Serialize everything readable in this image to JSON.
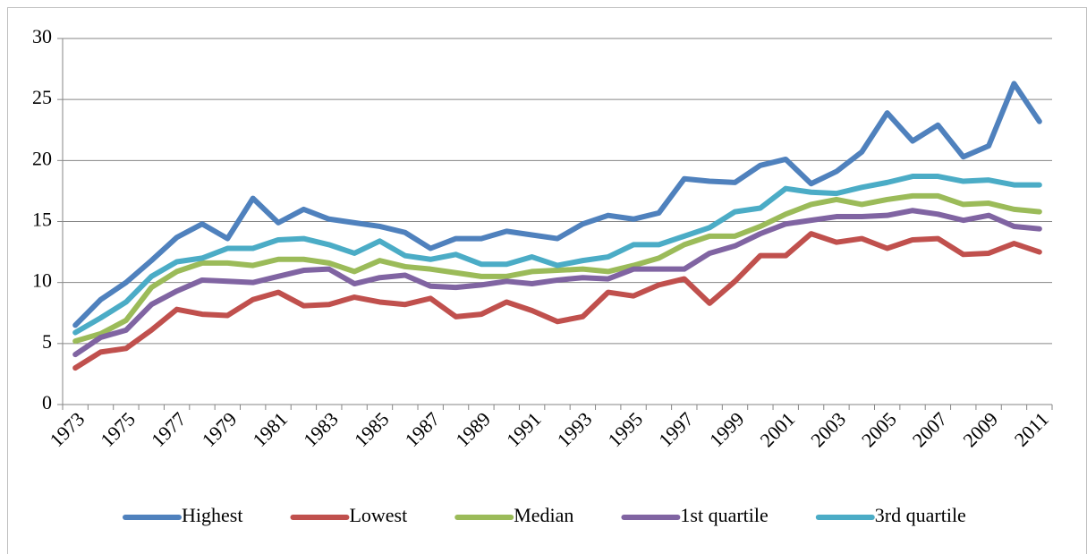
{
  "chart_data": {
    "type": "line",
    "categories": [
      "1973",
      null,
      "1975",
      null,
      "1977",
      null,
      "1979",
      null,
      "1981",
      null,
      "1983",
      null,
      "1985",
      null,
      "1987",
      null,
      "1989",
      null,
      "1991",
      null,
      "1993",
      null,
      "1995",
      null,
      "1997",
      null,
      "1999",
      null,
      "2001",
      null,
      "2003",
      null,
      "2005",
      null,
      "2007",
      null,
      "2009",
      null,
      "2011"
    ],
    "series": [
      {
        "name": "Highest",
        "color": "#4f81bd",
        "values": [
          6.5,
          8.6,
          10.0,
          11.8,
          13.7,
          14.8,
          13.6,
          16.9,
          14.9,
          16.0,
          15.2,
          14.9,
          14.6,
          14.1,
          12.8,
          13.6,
          13.6,
          14.2,
          13.9,
          13.6,
          14.8,
          15.5,
          15.2,
          15.7,
          18.5,
          18.3,
          18.2,
          19.6,
          20.1,
          18.1,
          19.1,
          20.7,
          23.9,
          21.6,
          22.9,
          20.3,
          21.2,
          26.3,
          23.2
        ]
      },
      {
        "name": "Lowest",
        "color": "#c0504d",
        "values": [
          3.0,
          4.3,
          4.6,
          6.1,
          7.8,
          7.4,
          7.3,
          8.6,
          9.2,
          8.1,
          8.2,
          8.8,
          8.4,
          8.2,
          8.7,
          7.2,
          7.4,
          8.4,
          7.7,
          6.8,
          7.2,
          9.2,
          8.9,
          9.8,
          10.3,
          8.3,
          10.1,
          12.2,
          12.2,
          14.0,
          13.3,
          13.6,
          12.8,
          13.5,
          13.6,
          12.3,
          12.4,
          13.2,
          12.5
        ]
      },
      {
        "name": "Median",
        "color": "#9bbb59",
        "values": [
          5.2,
          5.8,
          6.9,
          9.6,
          10.9,
          11.6,
          11.6,
          11.4,
          11.9,
          11.9,
          11.6,
          10.9,
          11.8,
          11.3,
          11.1,
          10.8,
          10.5,
          10.5,
          10.9,
          11.0,
          11.1,
          10.9,
          11.4,
          12.0,
          13.1,
          13.8,
          13.8,
          14.6,
          15.6,
          16.4,
          16.8,
          16.4,
          16.8,
          17.1,
          17.1,
          16.4,
          16.5,
          16.0,
          15.8
        ]
      },
      {
        "name": "1st quartile",
        "color": "#8064a2",
        "values": [
          4.1,
          5.5,
          6.1,
          8.2,
          9.3,
          10.2,
          10.1,
          10.0,
          10.5,
          11.0,
          11.1,
          9.9,
          10.4,
          10.6,
          9.7,
          9.6,
          9.8,
          10.1,
          9.9,
          10.2,
          10.4,
          10.3,
          11.1,
          11.1,
          11.1,
          12.4,
          13.0,
          14.0,
          14.8,
          15.1,
          15.4,
          15.4,
          15.5,
          15.9,
          15.6,
          15.1,
          15.5,
          14.6,
          14.4
        ]
      },
      {
        "name": "3rd quartile",
        "color": "#4bacc6",
        "values": [
          5.9,
          7.1,
          8.4,
          10.5,
          11.7,
          12.0,
          12.8,
          12.8,
          13.5,
          13.6,
          13.1,
          12.4,
          13.4,
          12.2,
          11.9,
          12.3,
          11.5,
          11.5,
          12.1,
          11.4,
          11.8,
          12.1,
          13.1,
          13.1,
          13.8,
          14.5,
          15.8,
          16.1,
          17.7,
          17.4,
          17.3,
          17.8,
          18.2,
          18.7,
          18.7,
          18.3,
          18.4,
          18.0,
          18.0
        ]
      }
    ],
    "ylim": [
      0,
      30
    ],
    "yticks": [
      0,
      5,
      10,
      15,
      20,
      25,
      30
    ],
    "grid": true,
    "legend": "bottom"
  }
}
